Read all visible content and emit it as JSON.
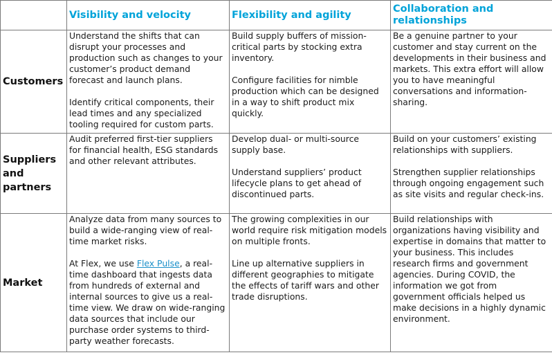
{
  "headers": {
    "corner": "",
    "col1": "Visibility and velocity",
    "col2": "Flexibility and agility",
    "col3": "Collaboration and relationships"
  },
  "rows": [
    {
      "label": "Customers",
      "col1": [
        "Understand the shifts that can disrupt your processes and production such as changes to your customer’s product demand forecast and launch plans.",
        "Identify critical components, their lead times and any specialized tooling required for custom parts."
      ],
      "col2": [
        "Build supply buffers of mission-critical parts by stocking extra inventory.",
        "Configure facilities for nimble production which can be designed in a way to shift product mix quickly."
      ],
      "col3": [
        "Be a genuine partner to your customer and stay current on the developments in their business and markets. This extra effort will allow you to have meaningful conversations and information-sharing."
      ]
    },
    {
      "label": "Suppliers and partners",
      "col1": [
        "Audit preferred first-tier suppliers for financial health, ESG standards and other relevant attributes."
      ],
      "col2": [
        "Develop dual- or multi-source supply base.",
        "Understand suppliers’ product lifecycle plans to get ahead of discontinued parts."
      ],
      "col3": [
        "Build on your customers’ existing relationships with suppliers.",
        "Strengthen supplier relationships through ongoing engagement such as site visits and regular check-ins."
      ]
    },
    {
      "label": "Market",
      "col1": {
        "p1": "Analyze data from many sources to build a wide-ranging view of real-time market risks.",
        "p2_before": "At Flex, we use ",
        "p2_link": "Flex Pulse",
        "p2_after": ", a real-time dashboard that ingests data from hundreds of external and internal sources to give us a real-time view. We draw on wide-ranging data sources that include our purchase order systems to third-party weather forecasts."
      },
      "col2": [
        "The growing complexities in our world require risk mitigation models on multiple fronts.",
        "Line up alternative suppliers in different geographies to mitigate the effects of tariff wars and other trade disruptions."
      ],
      "col3": [
        "Build relationships with organizations having visibility and expertise in domains that matter to your business. This includes research firms and government agencies. During COVID, the information we got from government officials helped us make decisions in a highly dynamic environment."
      ]
    }
  ]
}
